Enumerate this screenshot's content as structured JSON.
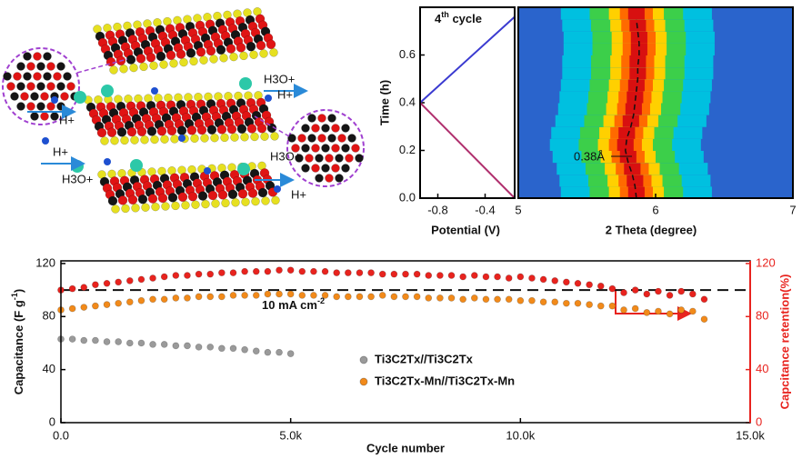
{
  "illustration": {
    "labels": [
      "H3O+",
      "H+",
      "H+",
      "H+",
      "H3O+",
      "H3O+",
      "H+"
    ]
  },
  "chart_data": [
    {
      "type": "line",
      "annotation": [
        "4",
        "th",
        " cycle"
      ],
      "xlabel": "Potential (V)",
      "ylabel": "Time (h)",
      "xlim": [
        -0.95,
        -0.15
      ],
      "xticks": [
        -0.8,
        -0.4
      ],
      "ylim": [
        0,
        0.8
      ],
      "yticks": [
        {
          "value": 0,
          "label": "0.0"
        },
        0.2,
        0.4,
        0.6
      ],
      "series": [
        {
          "color": "#3a3ad0",
          "x": [
            -0.95,
            -0.15
          ],
          "values": [
            0.4,
            0.76
          ]
        },
        {
          "color": "#b0306e",
          "x": [
            -0.95,
            -0.15
          ],
          "values": [
            0.4,
            0
          ]
        }
      ]
    },
    {
      "type": "heatmap",
      "xlabel": "2 Theta (degree)",
      "annotation": "0.38Å",
      "xlim": [
        5,
        7
      ],
      "xticks": [
        5,
        6,
        7
      ],
      "ylim": [
        0,
        0.8
      ],
      "colormap": [
        "#d81010",
        "#ff6a00",
        "#ffd000",
        "#3ccf4a",
        "#00c0e0",
        "#2a64cc"
      ],
      "times": [
        0,
        0.05,
        0.1,
        0.15,
        0.2,
        0.25,
        0.3,
        0.35,
        0.4,
        0.45,
        0.5,
        0.55,
        0.6,
        0.65,
        0.7,
        0.75
      ],
      "peak_center": [
        5.86,
        5.85,
        5.83,
        5.8,
        5.78,
        5.79,
        5.82,
        5.84,
        5.85,
        5.86,
        5.87,
        5.87,
        5.88,
        5.88,
        5.87,
        5.86
      ]
    },
    {
      "type": "scatter",
      "xlabel": "Cycle number",
      "ylabel": [
        "Capacitance (F g",
        "-1",
        ")"
      ],
      "y2label": "Capcitance retention(%)",
      "annotation": [
        "10 mA cm",
        "-2"
      ],
      "reference_line": 100,
      "xlim": [
        0,
        15000
      ],
      "xticks": [
        {
          "value": 0,
          "label": "0.0"
        },
        {
          "value": 5000,
          "label": "5.0k"
        },
        {
          "value": 10000,
          "label": "10.0k"
        },
        {
          "value": 15000,
          "label": "15.0k"
        }
      ],
      "ylim": [
        0,
        122
      ],
      "yticks": [
        0,
        40,
        80,
        120
      ],
      "y2lim": [
        0,
        122
      ],
      "y2ticks": [
        0,
        40,
        80,
        120
      ],
      "series": [
        {
          "name": "Ti3C2Tx//Ti3C2Tx",
          "color": "#9a9a9a",
          "x": [
            0,
            250,
            500,
            750,
            1000,
            1250,
            1500,
            1750,
            2000,
            2250,
            2500,
            2750,
            3000,
            3250,
            3500,
            3750,
            4000,
            4250,
            4500,
            4750,
            5000
          ],
          "values": [
            63,
            63,
            62,
            62,
            61,
            61,
            60,
            60,
            59,
            59,
            58,
            58,
            57,
            57,
            56,
            56,
            55,
            54,
            53,
            53,
            52
          ]
        },
        {
          "name": "Ti3C2Tx-Mn//Ti3C2Tx-Mn",
          "color": "#f28a1a",
          "x": [
            0,
            250,
            500,
            750,
            1000,
            1250,
            1500,
            1750,
            2000,
            2250,
            2500,
            2750,
            3000,
            3250,
            3500,
            3750,
            4000,
            4250,
            4500,
            4750,
            5000,
            5250,
            5500,
            5750,
            6000,
            6250,
            6500,
            6750,
            7000,
            7250,
            7500,
            7750,
            8000,
            8250,
            8500,
            8750,
            9000,
            9250,
            9500,
            9750,
            10000,
            10250,
            10500,
            10750,
            11000,
            11250,
            11500,
            11750,
            12000,
            12250,
            12500,
            12750,
            13000,
            13250,
            13500,
            13750,
            14000
          ],
          "values": [
            85,
            86,
            87,
            88,
            89,
            90,
            91,
            92,
            93,
            93,
            94,
            94,
            95,
            95,
            95,
            96,
            96,
            96,
            97,
            97,
            97,
            96,
            96,
            96,
            95,
            95,
            95,
            95,
            96,
            95,
            95,
            95,
            94,
            94,
            94,
            93,
            94,
            93,
            93,
            93,
            92,
            92,
            91,
            91,
            90,
            90,
            89,
            88,
            88,
            85,
            86,
            83,
            84,
            82,
            85,
            84,
            78
          ]
        },
        {
          "color": "#e8231e",
          "axis": "y2",
          "x": [
            0,
            250,
            500,
            750,
            1000,
            1250,
            1500,
            1750,
            2000,
            2250,
            2500,
            2750,
            3000,
            3250,
            3500,
            3750,
            4000,
            4250,
            4500,
            4750,
            5000,
            5250,
            5500,
            5750,
            6000,
            6250,
            6500,
            6750,
            7000,
            7250,
            7500,
            7750,
            8000,
            8250,
            8500,
            8750,
            9000,
            9250,
            9500,
            9750,
            10000,
            10250,
            10500,
            10750,
            11000,
            11250,
            11500,
            11750,
            12000,
            12250,
            12500,
            12750,
            13000,
            13250,
            13500,
            13750,
            14000
          ],
          "values": [
            100,
            101,
            102,
            104,
            105,
            106,
            107,
            108,
            109,
            110,
            111,
            111,
            112,
            112,
            113,
            113,
            114,
            114,
            114,
            115,
            115,
            114,
            114,
            114,
            113,
            113,
            113,
            113,
            112,
            112,
            112,
            112,
            111,
            111,
            111,
            110,
            111,
            110,
            110,
            109,
            110,
            109,
            108,
            107,
            106,
            105,
            104,
            103,
            101,
            98,
            100,
            97,
            99,
            96,
            99,
            97,
            93
          ]
        }
      ]
    }
  ]
}
